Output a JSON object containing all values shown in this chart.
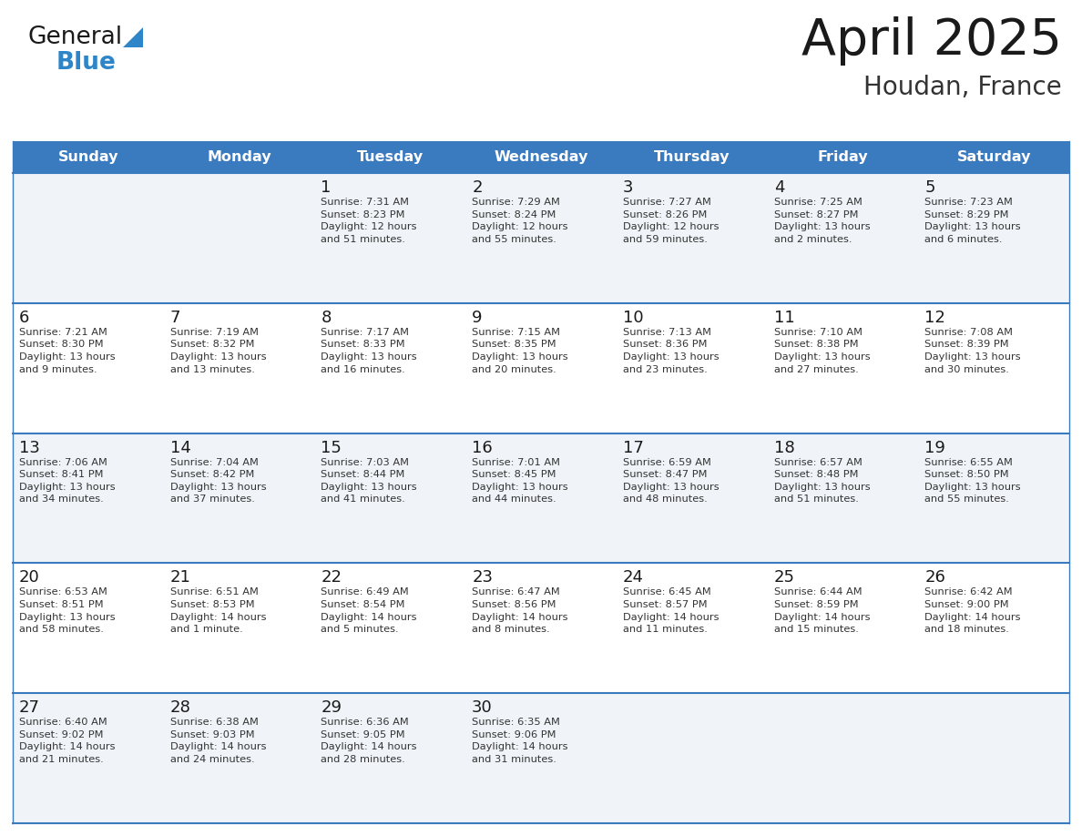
{
  "title": "April 2025",
  "subtitle": "Houdan, France",
  "header_bg_color": "#3a7abf",
  "header_text_color": "#ffffff",
  "row_bg_even": "#f0f4f8",
  "row_bg_odd": "#ffffff",
  "border_color": "#3a7abf",
  "days_of_week": [
    "Sunday",
    "Monday",
    "Tuesday",
    "Wednesday",
    "Thursday",
    "Friday",
    "Saturday"
  ],
  "weeks": [
    [
      {
        "day": null,
        "info": null
      },
      {
        "day": null,
        "info": null
      },
      {
        "day": 1,
        "info": "Sunrise: 7:31 AM\nSunset: 8:23 PM\nDaylight: 12 hours\nand 51 minutes."
      },
      {
        "day": 2,
        "info": "Sunrise: 7:29 AM\nSunset: 8:24 PM\nDaylight: 12 hours\nand 55 minutes."
      },
      {
        "day": 3,
        "info": "Sunrise: 7:27 AM\nSunset: 8:26 PM\nDaylight: 12 hours\nand 59 minutes."
      },
      {
        "day": 4,
        "info": "Sunrise: 7:25 AM\nSunset: 8:27 PM\nDaylight: 13 hours\nand 2 minutes."
      },
      {
        "day": 5,
        "info": "Sunrise: 7:23 AM\nSunset: 8:29 PM\nDaylight: 13 hours\nand 6 minutes."
      }
    ],
    [
      {
        "day": 6,
        "info": "Sunrise: 7:21 AM\nSunset: 8:30 PM\nDaylight: 13 hours\nand 9 minutes."
      },
      {
        "day": 7,
        "info": "Sunrise: 7:19 AM\nSunset: 8:32 PM\nDaylight: 13 hours\nand 13 minutes."
      },
      {
        "day": 8,
        "info": "Sunrise: 7:17 AM\nSunset: 8:33 PM\nDaylight: 13 hours\nand 16 minutes."
      },
      {
        "day": 9,
        "info": "Sunrise: 7:15 AM\nSunset: 8:35 PM\nDaylight: 13 hours\nand 20 minutes."
      },
      {
        "day": 10,
        "info": "Sunrise: 7:13 AM\nSunset: 8:36 PM\nDaylight: 13 hours\nand 23 minutes."
      },
      {
        "day": 11,
        "info": "Sunrise: 7:10 AM\nSunset: 8:38 PM\nDaylight: 13 hours\nand 27 minutes."
      },
      {
        "day": 12,
        "info": "Sunrise: 7:08 AM\nSunset: 8:39 PM\nDaylight: 13 hours\nand 30 minutes."
      }
    ],
    [
      {
        "day": 13,
        "info": "Sunrise: 7:06 AM\nSunset: 8:41 PM\nDaylight: 13 hours\nand 34 minutes."
      },
      {
        "day": 14,
        "info": "Sunrise: 7:04 AM\nSunset: 8:42 PM\nDaylight: 13 hours\nand 37 minutes."
      },
      {
        "day": 15,
        "info": "Sunrise: 7:03 AM\nSunset: 8:44 PM\nDaylight: 13 hours\nand 41 minutes."
      },
      {
        "day": 16,
        "info": "Sunrise: 7:01 AM\nSunset: 8:45 PM\nDaylight: 13 hours\nand 44 minutes."
      },
      {
        "day": 17,
        "info": "Sunrise: 6:59 AM\nSunset: 8:47 PM\nDaylight: 13 hours\nand 48 minutes."
      },
      {
        "day": 18,
        "info": "Sunrise: 6:57 AM\nSunset: 8:48 PM\nDaylight: 13 hours\nand 51 minutes."
      },
      {
        "day": 19,
        "info": "Sunrise: 6:55 AM\nSunset: 8:50 PM\nDaylight: 13 hours\nand 55 minutes."
      }
    ],
    [
      {
        "day": 20,
        "info": "Sunrise: 6:53 AM\nSunset: 8:51 PM\nDaylight: 13 hours\nand 58 minutes."
      },
      {
        "day": 21,
        "info": "Sunrise: 6:51 AM\nSunset: 8:53 PM\nDaylight: 14 hours\nand 1 minute."
      },
      {
        "day": 22,
        "info": "Sunrise: 6:49 AM\nSunset: 8:54 PM\nDaylight: 14 hours\nand 5 minutes."
      },
      {
        "day": 23,
        "info": "Sunrise: 6:47 AM\nSunset: 8:56 PM\nDaylight: 14 hours\nand 8 minutes."
      },
      {
        "day": 24,
        "info": "Sunrise: 6:45 AM\nSunset: 8:57 PM\nDaylight: 14 hours\nand 11 minutes."
      },
      {
        "day": 25,
        "info": "Sunrise: 6:44 AM\nSunset: 8:59 PM\nDaylight: 14 hours\nand 15 minutes."
      },
      {
        "day": 26,
        "info": "Sunrise: 6:42 AM\nSunset: 9:00 PM\nDaylight: 14 hours\nand 18 minutes."
      }
    ],
    [
      {
        "day": 27,
        "info": "Sunrise: 6:40 AM\nSunset: 9:02 PM\nDaylight: 14 hours\nand 21 minutes."
      },
      {
        "day": 28,
        "info": "Sunrise: 6:38 AM\nSunset: 9:03 PM\nDaylight: 14 hours\nand 24 minutes."
      },
      {
        "day": 29,
        "info": "Sunrise: 6:36 AM\nSunset: 9:05 PM\nDaylight: 14 hours\nand 28 minutes."
      },
      {
        "day": 30,
        "info": "Sunrise: 6:35 AM\nSunset: 9:06 PM\nDaylight: 14 hours\nand 31 minutes."
      },
      {
        "day": null,
        "info": null
      },
      {
        "day": null,
        "info": null
      },
      {
        "day": null,
        "info": null
      }
    ]
  ],
  "logo_general_color": "#1a1a1a",
  "logo_blue_color": "#2e86c8",
  "logo_triangle_color": "#2e86c8",
  "title_color": "#1a1a1a",
  "subtitle_color": "#333333",
  "day_number_color": "#1a1a1a",
  "info_text_color": "#333333"
}
